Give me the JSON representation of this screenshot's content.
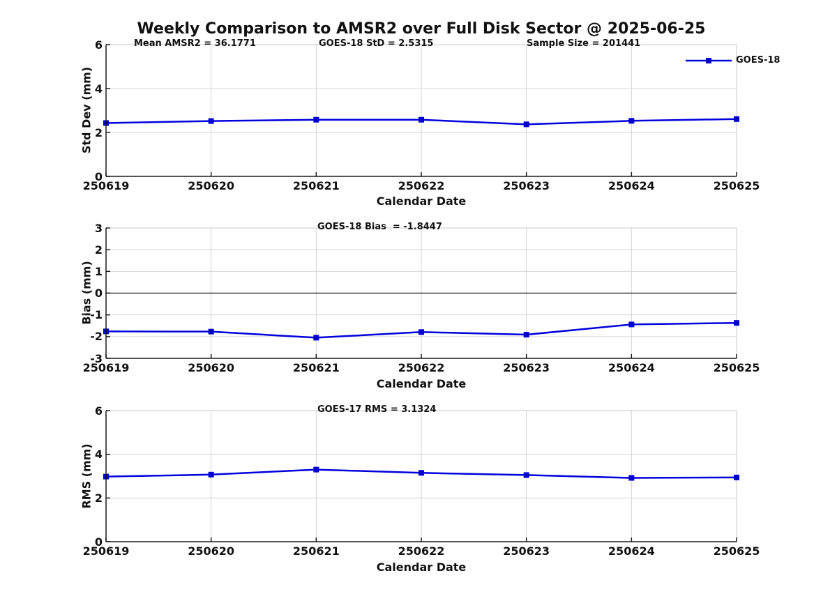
{
  "title": "Weekly Comparison to AMSR2 over Full Disk Sector @ 2025-06-25",
  "legend": {
    "label": "GOES-18"
  },
  "colors": {
    "line": "#0000dd",
    "marker_fill": "#0000cc",
    "grid": "#d4d4d4",
    "box": "#c9c9c9",
    "axis": "#1a1a1a",
    "zero_line": "#3c3c3c",
    "text": "#111111",
    "background": "#ffffff"
  },
  "chart_data": [
    {
      "type": "line",
      "ylabel": "Std Dev (mm)",
      "xlabel": "Calendar Date",
      "ylim": [
        0,
        6
      ],
      "yticks": [
        0,
        2,
        4,
        6
      ],
      "grid": true,
      "legend_position": "top-right",
      "annotations": [
        "Mean AMSR2 = 36.1771",
        "GOES-18 StD = 2.5315",
        "Sample Size = 201441"
      ],
      "categories": [
        "250619",
        "250620",
        "250621",
        "250622",
        "250623",
        "250624",
        "250625"
      ],
      "series": [
        {
          "name": "GOES-18",
          "values": [
            2.43,
            2.52,
            2.58,
            2.58,
            2.37,
            2.53,
            2.61
          ]
        }
      ]
    },
    {
      "type": "line",
      "ylabel": "Bias (mm)",
      "xlabel": "Calendar Date",
      "ylim": [
        -3,
        3
      ],
      "yticks": [
        -3,
        -2,
        -1,
        0,
        1,
        2,
        3
      ],
      "grid": true,
      "zero_line": true,
      "annotations": [
        "GOES-18 Bias  = -1.8447"
      ],
      "categories": [
        "250619",
        "250620",
        "250621",
        "250622",
        "250623",
        "250624",
        "250625"
      ],
      "series": [
        {
          "name": "GOES-18",
          "values": [
            -1.76,
            -1.77,
            -2.05,
            -1.79,
            -1.91,
            -1.44,
            -1.37
          ]
        }
      ]
    },
    {
      "type": "line",
      "ylabel": "RMS (mm)",
      "xlabel": "Calendar Date",
      "ylim": [
        0,
        6
      ],
      "yticks": [
        0,
        2,
        4,
        6
      ],
      "grid": true,
      "annotations": [
        "GOES-17 RMS = 3.1324"
      ],
      "categories": [
        "250619",
        "250620",
        "250621",
        "250622",
        "250623",
        "250624",
        "250625"
      ],
      "series": [
        {
          "name": "GOES-17",
          "values": [
            2.98,
            3.07,
            3.3,
            3.15,
            3.05,
            2.92,
            2.94
          ]
        }
      ]
    }
  ]
}
